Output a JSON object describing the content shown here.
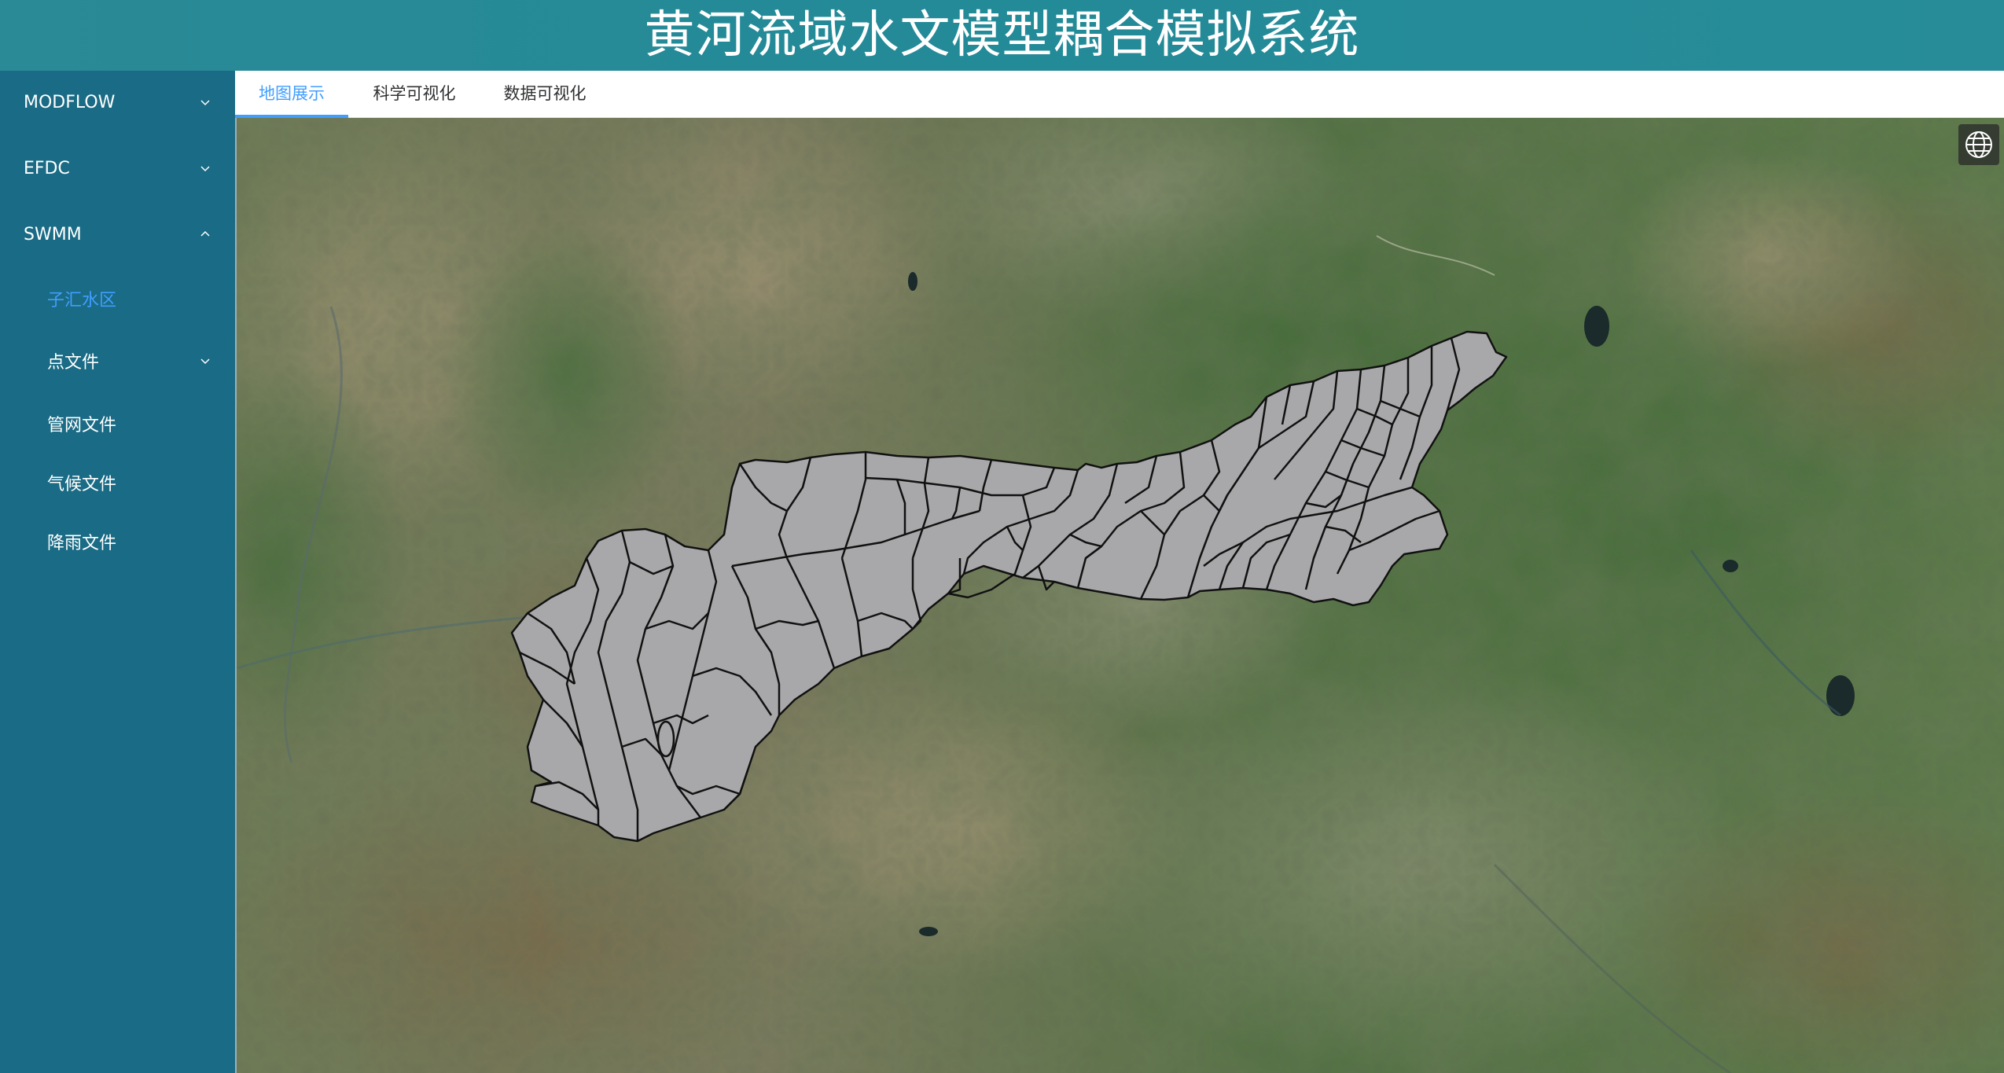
{
  "header": {
    "title": "黄河流域水文模型耦合模拟系统"
  },
  "sidebar": {
    "items": [
      {
        "label": "MODFLOW",
        "chevron": "chevron-down-icon"
      },
      {
        "label": "EFDC",
        "chevron": "chevron-down-icon"
      },
      {
        "label": "SWMM",
        "chevron": "chevron-up-icon"
      },
      {
        "label": "子汇水区",
        "active": true
      },
      {
        "label": "点文件",
        "chevron": "chevron-down-icon"
      },
      {
        "label": "管网文件"
      },
      {
        "label": "气候文件"
      },
      {
        "label": "降雨文件"
      }
    ],
    "active_color": "#409eff"
  },
  "tabs": [
    {
      "label": "地图展示",
      "active": true
    },
    {
      "label": "科学可视化"
    },
    {
      "label": "数据可视化"
    }
  ],
  "map": {
    "basemap": "satellite-imagery",
    "layer": "subcatchments-polygons",
    "polygon_fill": "#a8a8aa",
    "polygon_stroke": "#111111",
    "control_icon": "globe-icon"
  }
}
